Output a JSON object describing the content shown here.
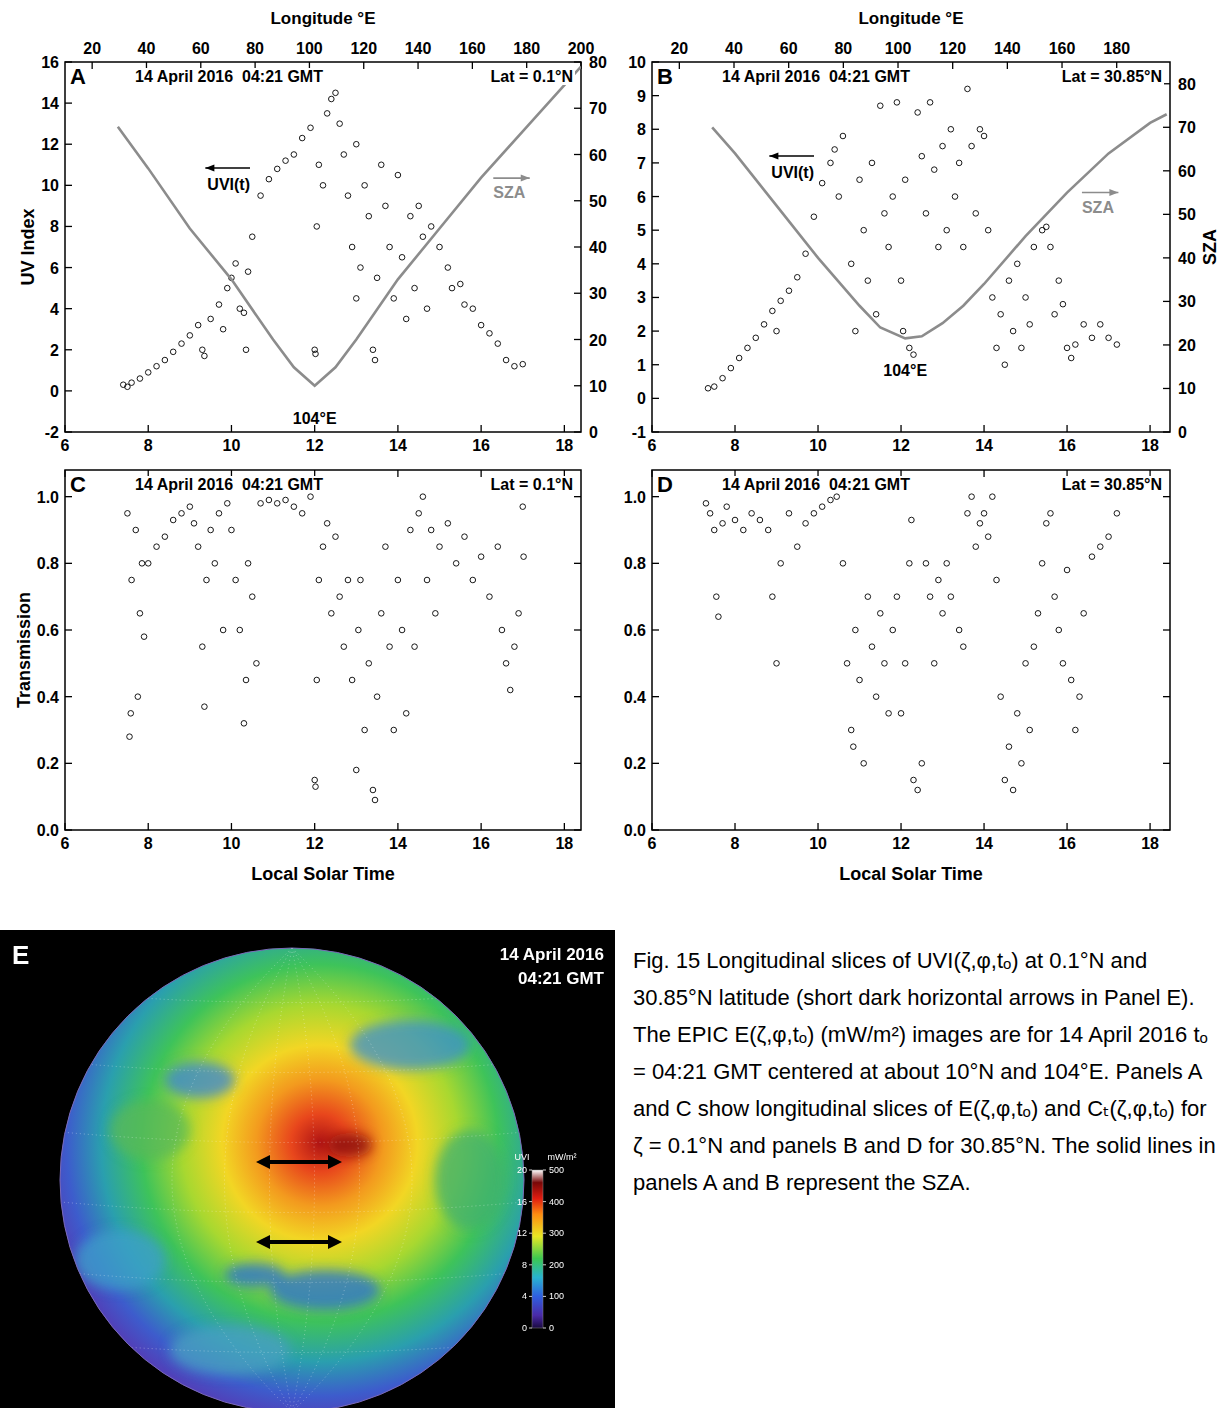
{
  "chart_data": [
    {
      "type": "scatter",
      "panel_label": "A",
      "title": "14 April 2016  04:21 GMT",
      "subtitle": "Lat = 0.1°N",
      "x2_label": "Longitude °E",
      "y_label": "UV Index",
      "xlim": [
        6,
        18.4
      ],
      "xticks": [
        6,
        8,
        10,
        12,
        14,
        16,
        18
      ],
      "x2lim": [
        10,
        200
      ],
      "x2ticks": [
        20,
        40,
        60,
        80,
        100,
        120,
        140,
        160,
        180,
        200
      ],
      "ylim": [
        -2,
        16
      ],
      "yticks": [
        -2,
        0,
        2,
        4,
        6,
        8,
        10,
        12,
        14,
        16
      ],
      "y2lim": [
        0,
        80
      ],
      "y2ticks": [
        0,
        10,
        20,
        30,
        40,
        50,
        60,
        70,
        80
      ],
      "annotations": [
        "104°E"
      ],
      "series": [
        {
          "name": "UVI(t)",
          "type": "scatter",
          "marker": "circle",
          "color": "#000000",
          "x": [
            7.4,
            7.5,
            7.6,
            7.8,
            8.0,
            8.2,
            8.4,
            8.6,
            8.8,
            9.0,
            9.2,
            9.3,
            9.35,
            9.5,
            9.7,
            9.8,
            9.9,
            10.0,
            10.1,
            10.2,
            10.3,
            10.35,
            10.4,
            10.5,
            10.7,
            10.9,
            11.1,
            11.3,
            11.5,
            11.7,
            11.9,
            12.0,
            12.02,
            12.05,
            12.1,
            12.2,
            12.3,
            12.4,
            12.5,
            12.6,
            12.7,
            12.8,
            12.9,
            13.0,
            13.0,
            13.1,
            13.2,
            13.3,
            13.4,
            13.45,
            13.5,
            13.6,
            13.7,
            13.8,
            13.9,
            14.0,
            14.1,
            14.2,
            14.3,
            14.4,
            14.5,
            14.6,
            14.7,
            14.8,
            15.0,
            15.2,
            15.3,
            15.5,
            15.6,
            15.8,
            16.0,
            16.2,
            16.4,
            16.6,
            16.8,
            17.0
          ],
          "values": [
            0.3,
            0.2,
            0.4,
            0.6,
            0.9,
            1.2,
            1.5,
            1.9,
            2.3,
            2.7,
            3.2,
            2.0,
            1.7,
            3.5,
            4.2,
            3.0,
            5.0,
            5.5,
            6.2,
            4.0,
            3.8,
            2.0,
            5.8,
            7.5,
            9.5,
            10.3,
            10.8,
            11.2,
            11.5,
            12.3,
            12.8,
            2.0,
            1.8,
            8.0,
            11.0,
            10.0,
            13.5,
            14.2,
            14.5,
            13.0,
            11.5,
            9.5,
            7.0,
            4.5,
            12.0,
            6.0,
            10.0,
            8.5,
            2.0,
            1.5,
            5.5,
            11.0,
            9.0,
            7.0,
            4.5,
            10.5,
            6.5,
            3.5,
            8.5,
            5.0,
            9.0,
            7.5,
            4.0,
            8.0,
            7.0,
            6.0,
            5.0,
            5.2,
            4.2,
            4.0,
            3.2,
            2.8,
            2.3,
            1.5,
            1.2,
            1.3
          ]
        },
        {
          "name": "SZA",
          "type": "line",
          "line_style": "solid",
          "color": "#8c8c8c",
          "axis": "y2",
          "x": [
            7.27,
            8,
            9,
            10,
            11,
            11.5,
            12,
            12.5,
            13,
            14,
            15,
            16,
            17,
            18,
            18.4
          ],
          "values": [
            66,
            57,
            44,
            33,
            20,
            14,
            10,
            14,
            20,
            33,
            44,
            55,
            65,
            75,
            79
          ]
        }
      ]
    },
    {
      "type": "scatter",
      "panel_label": "B",
      "title": "14 April 2016  04:21 GMT",
      "subtitle": "Lat = 30.85°N",
      "x2_label": "Longitude °E",
      "y2_label": "SZA",
      "xlim": [
        6,
        18.48
      ],
      "xticks": [
        6,
        8,
        10,
        12,
        14,
        16,
        18
      ],
      "x2lim": [
        10,
        199.5
      ],
      "x2ticks": [
        20,
        40,
        60,
        80,
        100,
        120,
        140,
        160,
        180
      ],
      "ylim": [
        -1,
        10
      ],
      "yticks": [
        -1,
        0,
        1,
        2,
        3,
        4,
        5,
        6,
        7,
        8,
        9,
        10
      ],
      "y2lim": [
        0,
        85
      ],
      "y2ticks": [
        0,
        10,
        20,
        30,
        40,
        50,
        60,
        70,
        80
      ],
      "annotations": [
        "104°E"
      ],
      "series": [
        {
          "name": "UVI(t)",
          "type": "scatter",
          "marker": "circle",
          "color": "#000000",
          "x": [
            7.35,
            7.5,
            7.7,
            7.9,
            8.1,
            8.3,
            8.5,
            8.7,
            8.9,
            9.0,
            9.1,
            9.3,
            9.5,
            9.7,
            9.9,
            10.1,
            10.3,
            10.4,
            10.5,
            10.6,
            10.8,
            10.9,
            11.0,
            11.1,
            11.2,
            11.3,
            11.4,
            11.5,
            11.6,
            11.7,
            11.8,
            11.9,
            12.0,
            12.05,
            12.1,
            12.2,
            12.3,
            12.4,
            12.5,
            12.6,
            12.7,
            12.8,
            12.9,
            13.0,
            13.1,
            13.2,
            13.3,
            13.4,
            13.5,
            13.6,
            13.7,
            13.8,
            13.9,
            14.0,
            14.1,
            14.2,
            14.3,
            14.4,
            14.5,
            14.6,
            14.7,
            14.8,
            14.9,
            15.0,
            15.1,
            15.2,
            15.4,
            15.5,
            15.6,
            15.7,
            15.8,
            15.9,
            16.0,
            16.1,
            16.2,
            16.4,
            16.6,
            16.8,
            17.0,
            17.2
          ],
          "values": [
            0.3,
            0.35,
            0.6,
            0.9,
            1.2,
            1.5,
            1.8,
            2.2,
            2.6,
            2.0,
            2.9,
            3.2,
            3.6,
            4.3,
            5.4,
            6.4,
            7.0,
            7.4,
            6.0,
            7.8,
            4.0,
            2.0,
            6.5,
            5.0,
            3.5,
            7.0,
            2.5,
            8.7,
            5.5,
            4.5,
            6.0,
            8.8,
            3.5,
            2.0,
            6.5,
            1.5,
            1.3,
            8.5,
            7.2,
            5.5,
            8.8,
            6.8,
            4.5,
            7.5,
            5.0,
            8.0,
            6.0,
            7.0,
            4.5,
            9.2,
            7.5,
            5.5,
            8.0,
            7.8,
            5.0,
            3.0,
            1.5,
            2.5,
            1.0,
            3.5,
            2.0,
            4.0,
            1.5,
            3.0,
            2.2,
            4.5,
            5.0,
            5.1,
            4.5,
            2.5,
            3.5,
            2.8,
            1.5,
            1.2,
            1.6,
            2.2,
            1.8,
            2.2,
            1.8,
            1.6
          ]
        },
        {
          "name": "SZA",
          "type": "line",
          "line_style": "solid",
          "color": "#8c8c8c",
          "axis": "y2",
          "x": [
            7.45,
            8,
            9,
            10,
            11,
            11.5,
            12.1,
            12.5,
            13,
            13.5,
            14,
            15,
            16,
            17,
            18,
            18.4
          ],
          "values": [
            70,
            64,
            52,
            40,
            29,
            24,
            21.5,
            22,
            25,
            29,
            34,
            45,
            55,
            64,
            71,
            73
          ]
        }
      ]
    },
    {
      "type": "scatter",
      "panel_label": "C",
      "title": "14 April 2016  04:21 GMT",
      "subtitle": "Lat = 0.1°N",
      "x_label": "Local Solar Time",
      "y_label": "Transmission",
      "xlim": [
        6,
        18.4
      ],
      "xticks": [
        6,
        8,
        10,
        12,
        14,
        16,
        18
      ],
      "ylim": [
        0,
        1.08
      ],
      "yticks": [
        {
          "value": 0,
          "label": "0.0"
        },
        0.2,
        0.4,
        0.6,
        0.8,
        {
          "value": 1,
          "label": "1.0"
        }
      ],
      "series": [
        {
          "type": "scatter",
          "marker": "circle",
          "color": "#000000",
          "x": [
            7.5,
            7.55,
            7.58,
            7.6,
            7.7,
            7.75,
            7.8,
            7.85,
            7.9,
            8.0,
            8.2,
            8.4,
            8.6,
            8.8,
            9.0,
            9.1,
            9.2,
            9.3,
            9.35,
            9.4,
            9.5,
            9.6,
            9.7,
            9.8,
            9.9,
            10.0,
            10.1,
            10.2,
            10.3,
            10.35,
            10.4,
            10.5,
            10.6,
            10.7,
            10.9,
            11.1,
            11.3,
            11.5,
            11.7,
            11.9,
            12.0,
            12.02,
            12.05,
            12.1,
            12.2,
            12.3,
            12.4,
            12.5,
            12.6,
            12.7,
            12.8,
            12.9,
            13.0,
            13.05,
            13.1,
            13.2,
            13.3,
            13.4,
            13.45,
            13.5,
            13.6,
            13.7,
            13.8,
            13.9,
            14.0,
            14.1,
            14.2,
            14.3,
            14.4,
            14.5,
            14.6,
            14.7,
            14.8,
            14.9,
            15.0,
            15.2,
            15.4,
            15.6,
            15.8,
            16.0,
            16.2,
            16.4,
            16.5,
            16.6,
            16.7,
            16.8,
            16.9,
            17.0,
            17.02
          ],
          "values": [
            0.95,
            0.28,
            0.35,
            0.75,
            0.9,
            0.4,
            0.65,
            0.8,
            0.58,
            0.8,
            0.85,
            0.88,
            0.93,
            0.95,
            0.97,
            0.92,
            0.85,
            0.55,
            0.37,
            0.75,
            0.9,
            0.8,
            0.95,
            0.6,
            0.98,
            0.9,
            0.75,
            0.6,
            0.32,
            0.45,
            0.8,
            0.7,
            0.5,
            0.98,
            0.99,
            0.98,
            0.99,
            0.97,
            0.95,
            1.0,
            0.15,
            0.13,
            0.45,
            0.75,
            0.85,
            0.92,
            0.65,
            0.88,
            0.7,
            0.55,
            0.75,
            0.45,
            0.18,
            0.6,
            0.75,
            0.3,
            0.5,
            0.12,
            0.09,
            0.4,
            0.65,
            0.85,
            0.55,
            0.3,
            0.75,
            0.6,
            0.35,
            0.9,
            0.55,
            0.95,
            1.0,
            0.75,
            0.9,
            0.65,
            0.85,
            0.92,
            0.8,
            0.88,
            0.75,
            0.82,
            0.7,
            0.85,
            0.6,
            0.5,
            0.42,
            0.55,
            0.65,
            0.97,
            0.82
          ]
        }
      ]
    },
    {
      "type": "scatter",
      "panel_label": "D",
      "title": "14 April 2016  04:21 GMT",
      "subtitle": "Lat = 30.85°N",
      "x_label": "Local Solar Time",
      "xlim": [
        6,
        18.48
      ],
      "xticks": [
        6,
        8,
        10,
        12,
        14,
        16,
        18
      ],
      "ylim": [
        0,
        1.08
      ],
      "yticks": [
        {
          "value": 0,
          "label": "0.0"
        },
        0.2,
        0.4,
        0.6,
        0.8,
        {
          "value": 1,
          "label": "1.0"
        }
      ],
      "series": [
        {
          "type": "scatter",
          "marker": "circle",
          "color": "#000000",
          "x": [
            7.3,
            7.4,
            7.5,
            7.55,
            7.6,
            7.7,
            7.8,
            8.0,
            8.2,
            8.4,
            8.6,
            8.8,
            8.9,
            9.0,
            9.1,
            9.3,
            9.5,
            9.7,
            9.9,
            10.1,
            10.3,
            10.45,
            10.6,
            10.7,
            10.8,
            10.85,
            10.9,
            11.0,
            11.1,
            11.2,
            11.3,
            11.4,
            11.5,
            11.6,
            11.7,
            11.8,
            11.9,
            12.0,
            12.1,
            12.2,
            12.25,
            12.3,
            12.4,
            12.5,
            12.6,
            12.7,
            12.8,
            12.9,
            13.0,
            13.1,
            13.2,
            13.4,
            13.5,
            13.6,
            13.7,
            13.8,
            13.9,
            14.0,
            14.1,
            14.2,
            14.3,
            14.4,
            14.5,
            14.6,
            14.7,
            14.8,
            14.9,
            15.0,
            15.1,
            15.2,
            15.3,
            15.4,
            15.5,
            15.6,
            15.7,
            15.8,
            15.9,
            16.0,
            16.1,
            16.2,
            16.3,
            16.4,
            16.6,
            16.8,
            17.0,
            17.2
          ],
          "values": [
            0.98,
            0.95,
            0.9,
            0.7,
            0.64,
            0.92,
            0.97,
            0.93,
            0.9,
            0.95,
            0.93,
            0.9,
            0.7,
            0.5,
            0.8,
            0.95,
            0.85,
            0.92,
            0.95,
            0.97,
            0.99,
            1.0,
            0.8,
            0.5,
            0.3,
            0.25,
            0.6,
            0.45,
            0.2,
            0.7,
            0.55,
            0.4,
            0.65,
            0.5,
            0.35,
            0.6,
            0.7,
            0.35,
            0.5,
            0.8,
            0.93,
            0.15,
            0.12,
            0.2,
            0.8,
            0.7,
            0.5,
            0.75,
            0.65,
            0.8,
            0.7,
            0.6,
            0.55,
            0.95,
            1.0,
            0.85,
            0.92,
            0.95,
            0.88,
            1.0,
            0.75,
            0.4,
            0.15,
            0.25,
            0.12,
            0.35,
            0.2,
            0.5,
            0.3,
            0.55,
            0.65,
            0.8,
            0.92,
            0.95,
            0.7,
            0.6,
            0.5,
            0.78,
            0.45,
            0.3,
            0.4,
            0.65,
            0.82,
            0.85,
            0.88,
            0.95
          ]
        }
      ]
    }
  ],
  "panel_e": {
    "label": "E",
    "date": "14 April 2016",
    "time": "04:21 GMT",
    "colorbar": {
      "title": "UVI",
      "range": [
        0,
        20
      ],
      "ticks": [
        0,
        4,
        8,
        12,
        16,
        20
      ],
      "title2": "mW/m²",
      "range2": [
        0,
        500
      ],
      "ticks2": [
        0,
        100,
        200,
        300,
        400,
        500
      ]
    }
  },
  "caption": "Fig. 15 Longitudinal slices of UVI(ζ,φ,tₒ) at 0.1°N and 30.85°N latitude (short dark horizontal arrows in Panel E). The EPIC E(ζ,φ,tₒ) (mW/m²) images are for 14 April 2016 tₒ = 04:21 GMT centered at about 10°N and 104°E. Panels A and C show longitudinal slices of E(ζ,φ,tₒ) and Cₜ(ζ,φ,tₒ) for ζ = 0.1°N and panels B and D for 30.85°N. The solid lines in panels A and B represent the SZA."
}
